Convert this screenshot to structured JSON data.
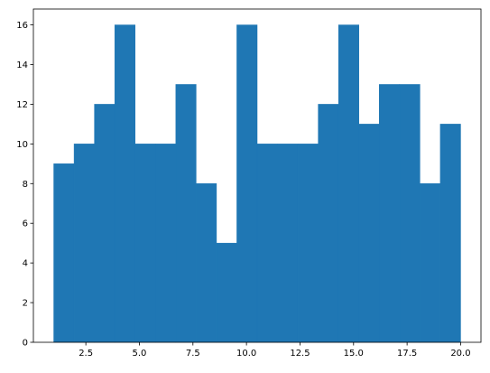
{
  "chart_data": {
    "type": "histogram",
    "bins": [
      1,
      1.95,
      2.9,
      3.85,
      4.8,
      5.75,
      6.7,
      7.65,
      8.6,
      9.55,
      10.5,
      11.45,
      12.4,
      13.35,
      14.3,
      15.25,
      16.2,
      17.15,
      18.1,
      19.05,
      20
    ],
    "values": [
      9,
      10,
      12,
      16,
      10,
      10,
      13,
      8,
      5,
      16,
      10,
      10,
      10,
      12,
      16,
      11,
      13,
      13,
      8,
      11
    ],
    "color": "#1f77b4",
    "xlim": [
      0.05,
      20.95
    ],
    "xticks": [
      2.5,
      {
        "value": 5,
        "label": "5.0"
      },
      7.5,
      {
        "value": 10,
        "label": "10.0"
      },
      12.5,
      {
        "value": 15,
        "label": "15.0"
      },
      17.5,
      {
        "value": 20,
        "label": "20.0"
      }
    ],
    "ylim": [
      0,
      16.8
    ],
    "yticks": [
      0,
      2,
      4,
      6,
      8,
      10,
      12,
      14,
      16
    ]
  }
}
